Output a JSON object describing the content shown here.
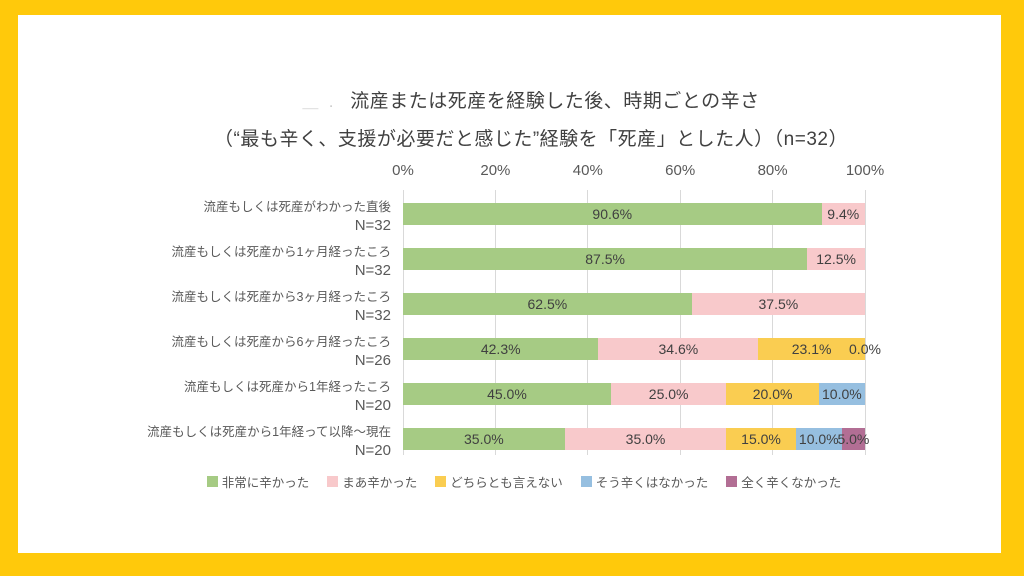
{
  "page": {
    "frame_color": "#FFC90B",
    "panel_color": "#FFFFFF",
    "title_redacted_prefix": "＿ .",
    "title_line1": "流産または死産を経験した後、時期ごとの辛さ",
    "title_line2": "（“最も辛く、支援が必要だと感じた”経験を「死産」とした人）（n=32）"
  },
  "chart_data": {
    "type": "bar",
    "stacked": true,
    "orientation": "horizontal",
    "title": "流産または死産を経験した後、時期ごとの辛さ（“最も辛く、支援が必要だと感じた”経験を「死産」とした人）（n=32）",
    "x_axis": {
      "ticks": [
        "0%",
        "20%",
        "40%",
        "60%",
        "80%",
        "100%"
      ],
      "range": [
        0,
        100
      ],
      "grid": true,
      "gridline_color": "#D9D9D9"
    },
    "legend_position": "bottom",
    "series": [
      {
        "name": "非常に辛かった",
        "color": "#A6CB84"
      },
      {
        "name": "まあ辛かった",
        "color": "#F8C9CB"
      },
      {
        "name": "どちらとも言えない",
        "color": "#FACD51"
      },
      {
        "name": "そう辛くはなかった",
        "color": "#96BFE0"
      },
      {
        "name": "全く辛くなかった",
        "color": "#B26E94"
      }
    ],
    "rows": [
      {
        "label": "流産もしくは死産がわかった直後",
        "n": "N=32",
        "segments": [
          {
            "series": 0,
            "value": 90.6,
            "label": "90.6%"
          },
          {
            "series": 1,
            "value": 9.4,
            "label": "9.4%"
          }
        ]
      },
      {
        "label": "流産もしくは死産から1ヶ月経ったころ",
        "n": "N=32",
        "segments": [
          {
            "series": 0,
            "value": 87.5,
            "label": "87.5%"
          },
          {
            "series": 1,
            "value": 12.5,
            "label": "12.5%"
          }
        ]
      },
      {
        "label": "流産もしくは死産から3ヶ月経ったころ",
        "n": "N=32",
        "segments": [
          {
            "series": 0,
            "value": 62.5,
            "label": "62.5%"
          },
          {
            "series": 1,
            "value": 37.5,
            "label": "37.5%"
          }
        ]
      },
      {
        "label": "流産もしくは死産から6ヶ月経ったころ",
        "n": "N=26",
        "segments": [
          {
            "series": 0,
            "value": 42.3,
            "label": "42.3%"
          },
          {
            "series": 1,
            "value": 34.6,
            "label": "34.6%"
          },
          {
            "series": 2,
            "value": 23.1,
            "label": "23.1%"
          },
          {
            "series": 3,
            "value": 0.0,
            "label": "0.0%"
          }
        ]
      },
      {
        "label": "流産もしくは死産から1年経ったころ",
        "n": "N=20",
        "segments": [
          {
            "series": 0,
            "value": 45.0,
            "label": "45.0%"
          },
          {
            "series": 1,
            "value": 25.0,
            "label": "25.0%"
          },
          {
            "series": 2,
            "value": 20.0,
            "label": "20.0%"
          },
          {
            "series": 3,
            "value": 10.0,
            "label": "10.0%"
          }
        ]
      },
      {
        "label": "流産もしくは死産から1年経って以降～現在",
        "n": "N=20",
        "segments": [
          {
            "series": 0,
            "value": 35.0,
            "label": "35.0%"
          },
          {
            "series": 1,
            "value": 35.0,
            "label": "35.0%"
          },
          {
            "series": 2,
            "value": 15.0,
            "label": "15.0%"
          },
          {
            "series": 3,
            "value": 10.0,
            "label": "10.0%"
          },
          {
            "series": 4,
            "value": 5.0,
            "label": "5.0%"
          }
        ]
      }
    ]
  }
}
